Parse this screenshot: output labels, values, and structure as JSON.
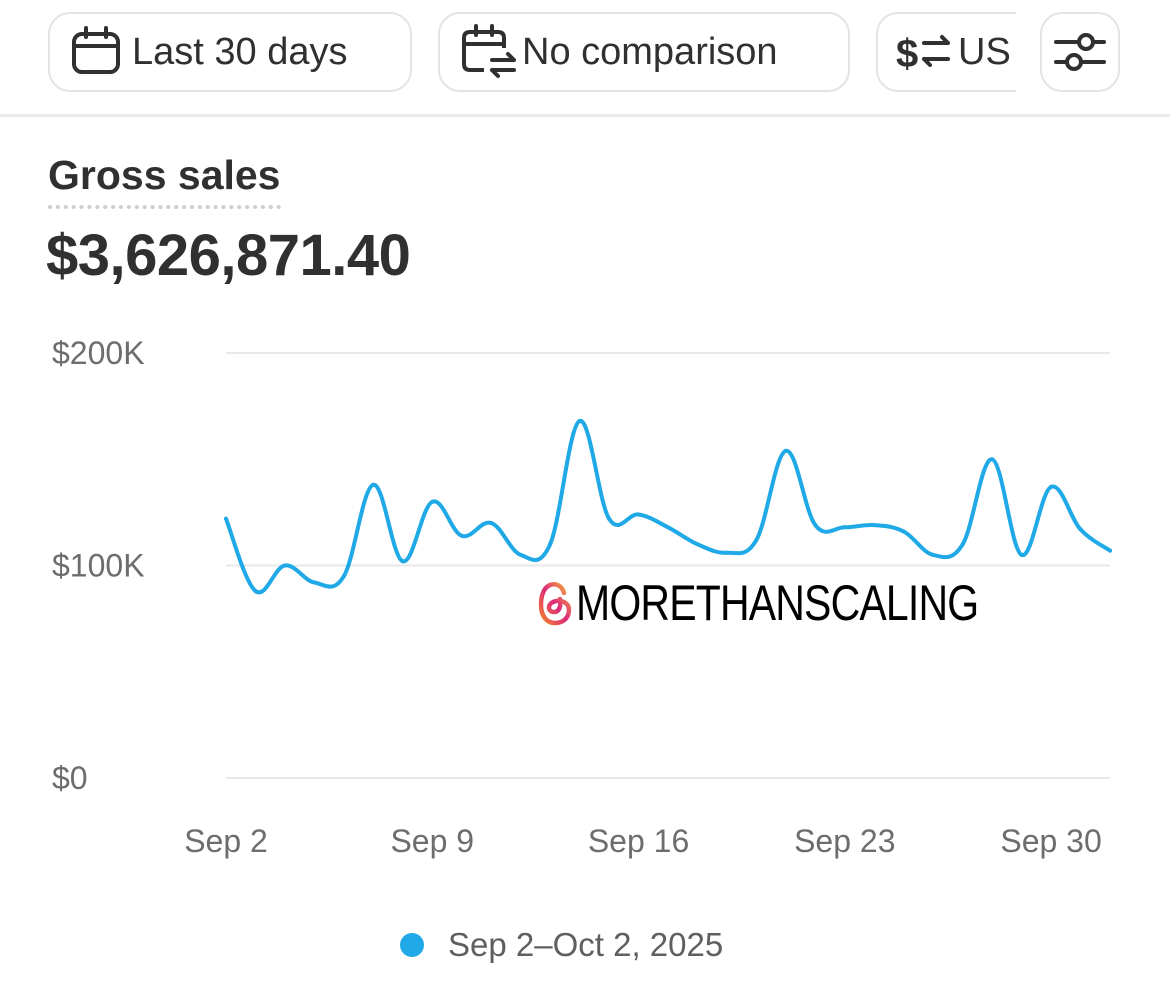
{
  "toolbar": {
    "date_range_label": "Last 30 days",
    "comparison_label": "No comparison",
    "currency_label": "US",
    "icons": [
      "calendar-icon",
      "calendar-compare-icon",
      "currency-switch-icon",
      "filter-sliders-icon"
    ]
  },
  "metric": {
    "title": "Gross sales",
    "value": "$3,626,871.40"
  },
  "watermark": {
    "text": "MORETHANSCALING"
  },
  "legend": {
    "label": "Sep 2–Oct 2, 2025",
    "color": "#1fa9e6"
  },
  "colors": {
    "series": "#1fa9e6",
    "grid": "#e8e8e8",
    "axis_text": "#6d6d6d",
    "text": "#303030"
  },
  "chart_data": {
    "type": "line",
    "title": "Gross sales",
    "xlabel": "",
    "ylabel": "",
    "ylim": [
      0,
      200000
    ],
    "y_ticks": [
      "$0",
      "$100K",
      "$200K"
    ],
    "y_tick_values": [
      0,
      100000,
      200000
    ],
    "x_ticks": [
      "Sep 2",
      "Sep 9",
      "Sep 16",
      "Sep 23",
      "Sep 30"
    ],
    "x_tick_index": [
      0,
      7,
      14,
      21,
      28
    ],
    "grid": true,
    "legend_position": "bottom",
    "series": [
      {
        "name": "Sep 2–Oct 2, 2025",
        "color": "#1fa9e6",
        "x": [
          "Sep 2",
          "Sep 3",
          "Sep 4",
          "Sep 5",
          "Sep 6",
          "Sep 7",
          "Sep 8",
          "Sep 9",
          "Sep 10",
          "Sep 11",
          "Sep 12",
          "Sep 13",
          "Sep 14",
          "Sep 15",
          "Sep 16",
          "Sep 17",
          "Sep 18",
          "Sep 19",
          "Sep 20",
          "Sep 21",
          "Sep 22",
          "Sep 23",
          "Sep 24",
          "Sep 25",
          "Sep 26",
          "Sep 27",
          "Sep 28",
          "Sep 29",
          "Sep 30",
          "Oct 1",
          "Oct 2"
        ],
        "values": [
          122000,
          88000,
          100000,
          92000,
          95000,
          138000,
          102000,
          130000,
          114000,
          120000,
          105000,
          110000,
          168000,
          122000,
          124000,
          118000,
          110000,
          106000,
          112000,
          154000,
          119000,
          118000,
          119000,
          116000,
          105000,
          110000,
          150000,
          105000,
          137000,
          117000,
          107000
        ]
      }
    ]
  }
}
